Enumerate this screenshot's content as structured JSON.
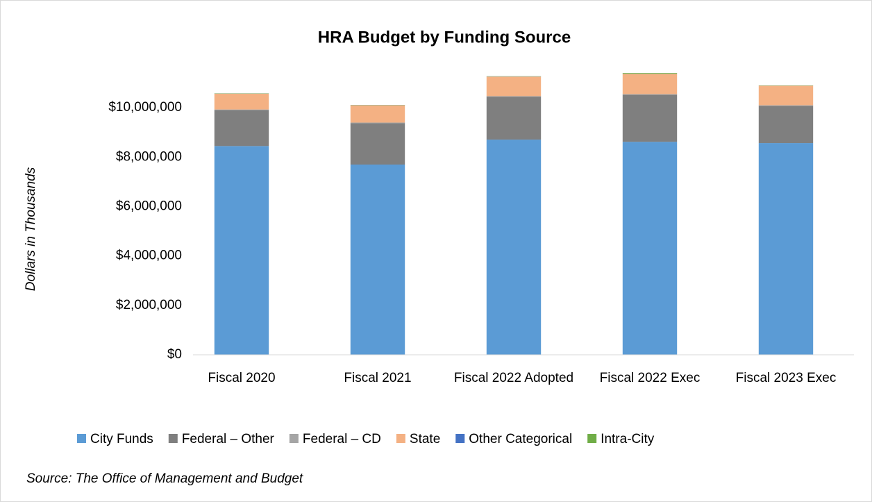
{
  "chart_data": {
    "type": "stacked_bar",
    "title": "HRA Budget by Funding Source",
    "y_axis_label": "Dollars in Thousands",
    "source": "Source: The Office of Management and Budget",
    "categories": [
      "Fiscal 2020",
      "Fiscal 2021",
      "Fiscal 2022 Adopted",
      "Fiscal 2022 Exec",
      "Fiscal 2023 Exec"
    ],
    "series": [
      {
        "name": "City Funds",
        "color": "#5b9bd5",
        "values": [
          8450000,
          7700000,
          8710000,
          8620000,
          8570000
        ]
      },
      {
        "name": "Federal – Other",
        "color": "#7f7f7f",
        "values": [
          1460000,
          1680000,
          1740000,
          1910000,
          1510000
        ]
      },
      {
        "name": "Federal – CD",
        "color": "#a5a5a5",
        "values": [
          20000,
          20000,
          20000,
          20000,
          20000
        ]
      },
      {
        "name": "State",
        "color": "#f4b183",
        "values": [
          640000,
          700000,
          790000,
          820000,
          790000
        ]
      },
      {
        "name": "Other Categorical",
        "color": "#4472c4",
        "values": [
          5000,
          5000,
          5000,
          5000,
          5000
        ]
      },
      {
        "name": "Intra-City",
        "color": "#70ad47",
        "values": [
          10000,
          10000,
          10000,
          30000,
          10000
        ]
      }
    ],
    "ylim": [
      0,
      12000000
    ],
    "yticks": [
      {
        "value": 0,
        "label": "$0"
      },
      {
        "value": 2000000,
        "label": "$2,000,000"
      },
      {
        "value": 4000000,
        "label": "$4,000,000"
      },
      {
        "value": 6000000,
        "label": "$6,000,000"
      },
      {
        "value": 8000000,
        "label": "$8,000,000"
      },
      {
        "value": 10000000,
        "label": "$10,000,000"
      }
    ],
    "grid": false,
    "legend": "bottom"
  }
}
